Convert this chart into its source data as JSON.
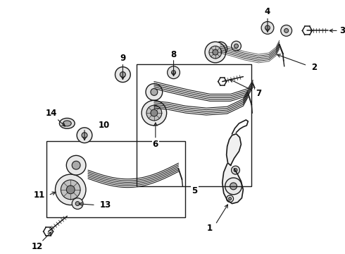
{
  "bg_color": "#ffffff",
  "line_color": "#1a1a1a",
  "fig_width": 4.9,
  "fig_height": 3.6,
  "dpi": 100,
  "label_fontsize": 8.5,
  "label_fontweight": "bold"
}
